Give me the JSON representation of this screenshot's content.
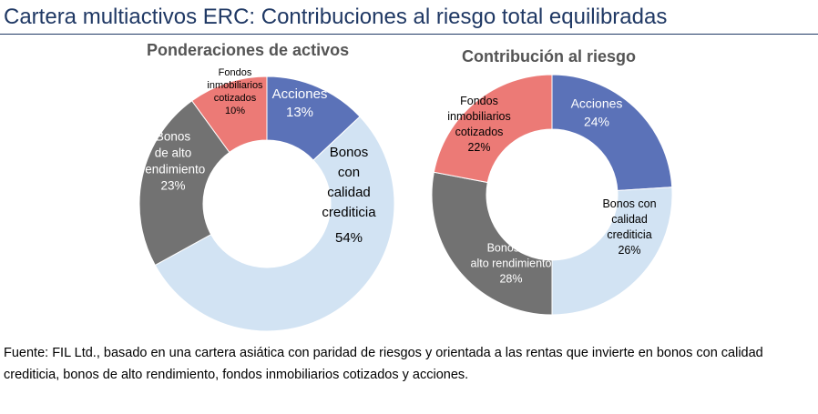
{
  "title": "Cartera multiactivos ERC: Contribuciones al riesgo total equilibradas",
  "source_note": "Fuente: FIL Ltd., basado en una cartera asiática con paridad de riesgos y orientada a las rentas que invierte en bonos con calidad crediticia, bonos de alto rendimiento, fondos inmobiliarios cotizados y acciones.",
  "colors": {
    "acciones": "#5b72b8",
    "bonos_calidad": "#d2e3f3",
    "bonos_alto": "#727272",
    "fondos": "#ec7a76"
  },
  "chart_data": [
    {
      "type": "pie",
      "title": "Ponderaciones de activos",
      "slices": [
        {
          "name": "Acciones",
          "value": 13,
          "label_lines": [
            "Acciones"
          ],
          "value_text": "13%",
          "color": "#5b72b8",
          "text_color": "#ffffff"
        },
        {
          "name": "Bonos con calidad crediticia",
          "value": 54,
          "label_lines": [
            "Bonos",
            "con",
            "calidad",
            "crediticia"
          ],
          "value_text": "54%",
          "color": "#d2e3f3",
          "text_color": "#000000"
        },
        {
          "name": "Bonos de alto rendimiento",
          "value": 23,
          "label_lines": [
            "Bonos",
            "de alto",
            "rendimiento"
          ],
          "value_text": "23%",
          "color": "#727272",
          "text_color": "#ffffff"
        },
        {
          "name": "Fondos inmobiliarios cotizados",
          "value": 10,
          "label_lines": [
            "Fondos",
            "inmobiliarios",
            "cotizados"
          ],
          "value_text": "10%",
          "color": "#ec7a76",
          "text_color": "#000000"
        }
      ]
    },
    {
      "type": "pie",
      "title": "Contribución al riesgo",
      "slices": [
        {
          "name": "Acciones",
          "value": 24,
          "label_lines": [
            "Acciones"
          ],
          "value_text": "24%",
          "color": "#5b72b8",
          "text_color": "#ffffff"
        },
        {
          "name": "Bonos con calidad crediticia",
          "value": 26,
          "label_lines": [
            "Bonos con",
            "calidad",
            "crediticia"
          ],
          "value_text": "26%",
          "color": "#d2e3f3",
          "text_color": "#000000"
        },
        {
          "name": "Bonos de alto rendimiento",
          "value": 28,
          "label_lines": [
            "Bonos de",
            "alto rendimiento"
          ],
          "value_text": "28%",
          "color": "#727272",
          "text_color": "#ffffff"
        },
        {
          "name": "Fondos inmobiliarios cotizados",
          "value": 22,
          "label_lines": [
            "Fondos",
            "inmobiliarios",
            "cotizados"
          ],
          "value_text": "22%",
          "color": "#ec7a76",
          "text_color": "#000000"
        }
      ]
    }
  ]
}
